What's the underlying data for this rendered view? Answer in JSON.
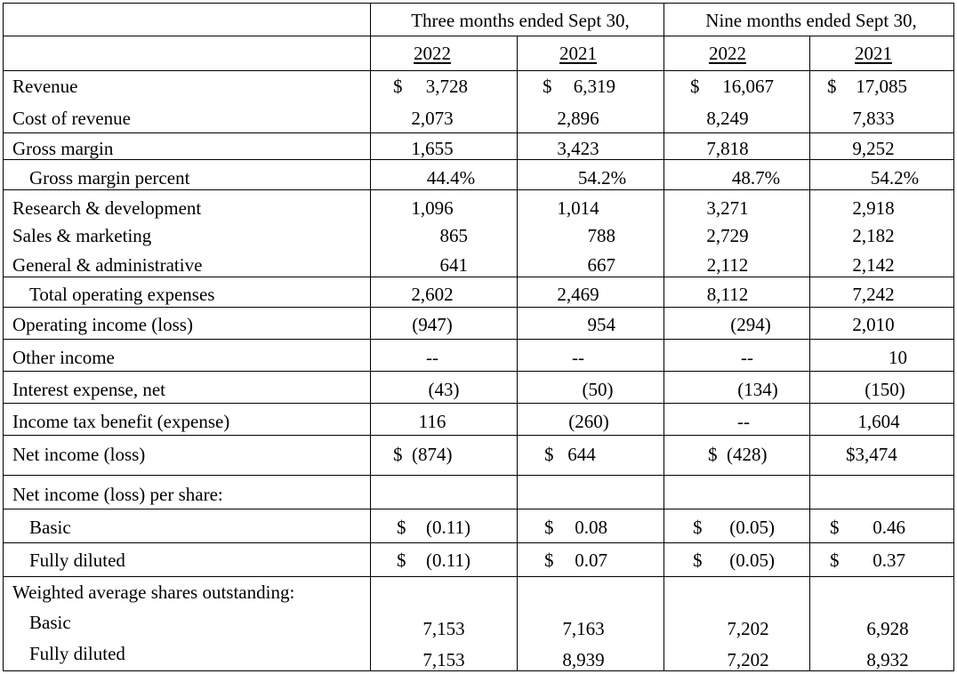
{
  "header": {
    "three_months": "Three months ended Sept 30,",
    "nine_months": "Nine months ended Sept 30,",
    "years": [
      "2022",
      "2021",
      "2022",
      "2021"
    ]
  },
  "rows": {
    "revenue": {
      "label": "Revenue",
      "v": [
        "3,728",
        "6,319",
        "16,067",
        "17,085"
      ],
      "dollar": "$"
    },
    "cost_of_revenue": {
      "label": "Cost of revenue",
      "v": [
        "2,073",
        "2,896",
        "8,249",
        "7,833"
      ]
    },
    "gross_margin": {
      "label": "Gross margin",
      "v": [
        "1,655",
        "3,423",
        "7,818",
        "9,252"
      ]
    },
    "gross_margin_percent": {
      "label": "Gross margin percent",
      "v": [
        "44.4%",
        "54.2%",
        "48.7%",
        "54.2%"
      ]
    },
    "rd": {
      "label": "Research & development",
      "v": [
        "1,096",
        "1,014",
        "3,271",
        "2,918"
      ]
    },
    "sm": {
      "label": "Sales & marketing",
      "v": [
        "865",
        "788",
        "2,729",
        "2,182"
      ]
    },
    "ga": {
      "label": "General & administrative",
      "v": [
        "641",
        "667",
        "2,112",
        "2,142"
      ]
    },
    "total_opex": {
      "label": "Total operating expenses",
      "v": [
        "2,602",
        "2,469",
        "8,112",
        "7,242"
      ]
    },
    "operating_income": {
      "label": "Operating income (loss)",
      "v": [
        "(947)",
        "954",
        "(294)",
        "2,010"
      ]
    },
    "other_income": {
      "label": "Other income",
      "v": [
        "--",
        "--",
        "--",
        "10"
      ]
    },
    "interest_expense": {
      "label": "Interest expense, net",
      "v": [
        "(43)",
        "(50)",
        "(134)",
        "(150)"
      ]
    },
    "income_tax": {
      "label": "Income tax benefit (expense)",
      "v": [
        "116",
        "(260)",
        "--",
        "1,604"
      ]
    },
    "net_income": {
      "label": "Net income (loss)",
      "v": [
        "$  (874)",
        "$   644",
        "$  (428)",
        "$3,474"
      ]
    },
    "per_share_header": {
      "label": "Net income (loss) per share:"
    },
    "eps_basic": {
      "label": "Basic",
      "v": [
        "(0.11)",
        "0.08",
        "(0.05)",
        "0.46"
      ],
      "dollar": "$"
    },
    "eps_diluted": {
      "label": "Fully diluted",
      "v": [
        "(0.11)",
        "0.07",
        "(0.05)",
        "0.37"
      ],
      "dollar": "$"
    },
    "shares_header": {
      "label": "Weighted average shares outstanding:"
    },
    "shares_basic": {
      "label": "Basic",
      "v": [
        "7,153",
        "7,163",
        "7,202",
        "6,928"
      ]
    },
    "shares_diluted": {
      "label": "Fully diluted",
      "v": [
        "7,153",
        "8,939",
        "7,202",
        "8,932"
      ]
    }
  }
}
